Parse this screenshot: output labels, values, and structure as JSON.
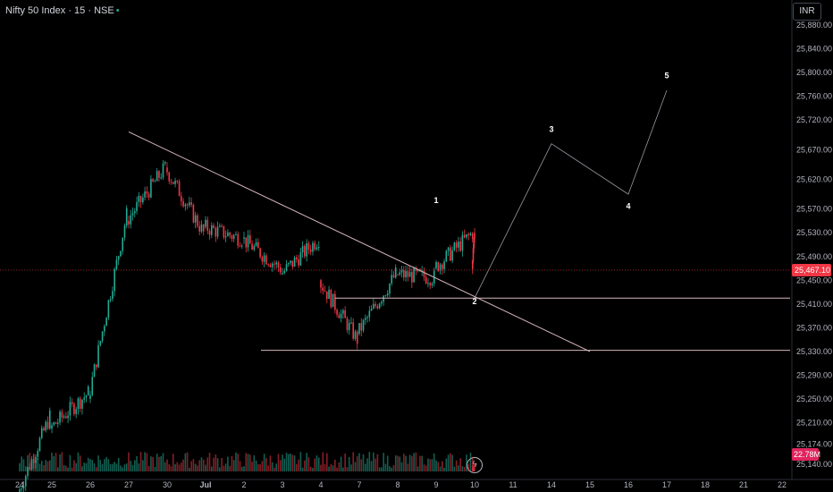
{
  "header": {
    "symbol": "Nifty 50 Index",
    "interval": "15",
    "exchange": "NSE",
    "currency": "INR"
  },
  "colors": {
    "up": "#22ab94",
    "down": "#f23645",
    "background": "#000000",
    "line": "#d7b7bd",
    "axis_text": "#b2b5be",
    "volume_badge": "#e0245e"
  },
  "chart_data": {
    "type": "candlestick",
    "title": "Nifty 50 Index · 15 · NSE",
    "x_tick_labels": [
      "24",
      "25",
      "26",
      "27",
      "30",
      "Jul",
      "2",
      "3",
      "4",
      "7",
      "8",
      "9",
      "10",
      "11",
      "14",
      "15",
      "16",
      "17",
      "18",
      "21",
      "22"
    ],
    "y_tick_labels": [
      "25,880.00",
      "25,840.00",
      "25,800.00",
      "25,760.00",
      "25,720.00",
      "25,670.00",
      "25,620.00",
      "25,570.00",
      "25,530.00",
      "25,490.00",
      "25,450.00",
      "25,410.00",
      "25,370.00",
      "25,330.00",
      "25,290.00",
      "25,250.00",
      "25,210.00",
      "25,174.00",
      "25,140.00"
    ],
    "ylim": [
      25140,
      25880
    ],
    "last_price": "25,467.10",
    "last_price_value": 25467.1,
    "volume_label": "22.78M",
    "session_anchors": [
      {
        "day": "24",
        "open": 25090,
        "close": 25220
      },
      {
        "day": "25",
        "open": 25200,
        "close": 25260
      },
      {
        "day": "26",
        "open": 25250,
        "close": 25560
      },
      {
        "day": "27",
        "open": 25550,
        "close": 25640
      },
      {
        "day": "30",
        "open": 25640,
        "close": 25530
      },
      {
        "day": "Jul",
        "open": 25540,
        "close": 25520
      },
      {
        "day": "2",
        "open": 25520,
        "close": 25470
      },
      {
        "day": "3",
        "open": 25460,
        "close": 25520
      },
      {
        "day": "4",
        "open": 25450,
        "close": 25350
      },
      {
        "day": "7",
        "open": 25360,
        "close": 25460
      },
      {
        "day": "8",
        "open": 25460,
        "close": 25455
      },
      {
        "day": "9",
        "open": 25470,
        "close": 25530
      },
      {
        "day": "10",
        "open": 25530,
        "close": 25467
      }
    ],
    "annotations": [
      {
        "label": "1",
        "x": "9",
        "y": 25580
      },
      {
        "label": "2",
        "x": "10",
        "y": 25410
      },
      {
        "label": "3",
        "x": "14",
        "y": 25700
      },
      {
        "label": "4",
        "x": "16",
        "y": 25570
      },
      {
        "label": "5",
        "x": "17",
        "y": 25790
      }
    ],
    "wave_projection": [
      {
        "x": "10",
        "y": 25420
      },
      {
        "x": "14",
        "y": 25680
      },
      {
        "x": "16",
        "y": 25595
      },
      {
        "x": "17",
        "y": 25770
      }
    ],
    "trendline": [
      {
        "x": "27",
        "y": 25700
      },
      {
        "x": "15",
        "y": 25330
      }
    ],
    "horizontal_levels": [
      25420,
      25332
    ],
    "grid": false
  }
}
